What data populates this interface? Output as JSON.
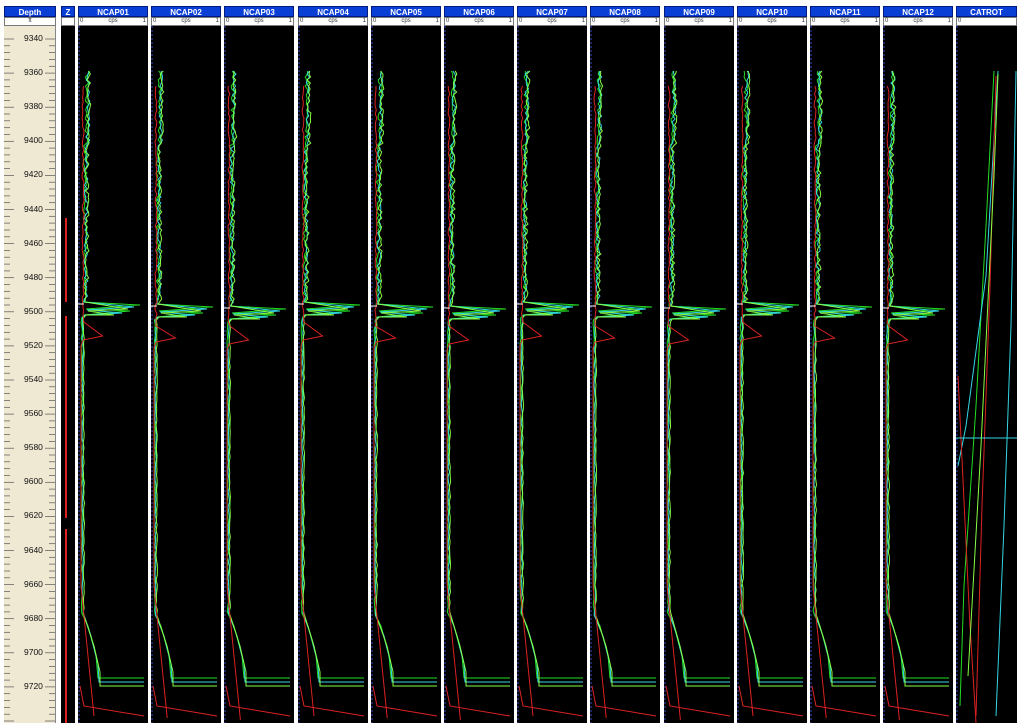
{
  "colors": {
    "header_bg": "#0a3fd6",
    "track_bg": "#000000",
    "depth_bg": "#efe8d2",
    "curve_green": "#22dd22",
    "curve_cyan": "#33d6e6",
    "curve_red": "#dd2222",
    "curve_lime": "#88ff44"
  },
  "depth": {
    "header": "Depth",
    "unit": "ft",
    "labels": [
      "9340",
      "9360",
      "9380",
      "9400",
      "9420",
      "9440",
      "9460",
      "9480",
      "9500",
      "9520",
      "9540",
      "9560",
      "9580",
      "9600",
      "9620",
      "9640",
      "9660",
      "9680",
      "9700",
      "9720"
    ]
  },
  "z": {
    "header": "Z"
  },
  "tracks": [
    {
      "name": "NCAP01",
      "scale_min": "0",
      "unit": "cps",
      "scale_max": "1"
    },
    {
      "name": "NCAP02",
      "scale_min": "0",
      "unit": "cps",
      "scale_max": "1"
    },
    {
      "name": "NCAP03",
      "scale_min": "0",
      "unit": "cps",
      "scale_max": "1"
    },
    {
      "name": "NCAP04",
      "scale_min": "0",
      "unit": "cps",
      "scale_max": "1"
    },
    {
      "name": "NCAP05",
      "scale_min": "0",
      "unit": "cps",
      "scale_max": "1"
    },
    {
      "name": "NCAP06",
      "scale_min": "0",
      "unit": "cps",
      "scale_max": "1"
    },
    {
      "name": "NCAP07",
      "scale_min": "0",
      "unit": "cps",
      "scale_max": "1"
    },
    {
      "name": "NCAP08",
      "scale_min": "0",
      "unit": "cps",
      "scale_max": "1"
    },
    {
      "name": "NCAP09",
      "scale_min": "0",
      "unit": "cps",
      "scale_max": "1"
    },
    {
      "name": "NCAP10",
      "scale_min": "0",
      "unit": "cps",
      "scale_max": "1"
    },
    {
      "name": "NCAP11",
      "scale_min": "0",
      "unit": "cps",
      "scale_max": "1"
    },
    {
      "name": "NCAP12",
      "scale_min": "0",
      "unit": "cps",
      "scale_max": "1"
    },
    {
      "name": "CATROT",
      "scale_min": "0",
      "unit": "",
      "scale_max": ""
    }
  ]
}
